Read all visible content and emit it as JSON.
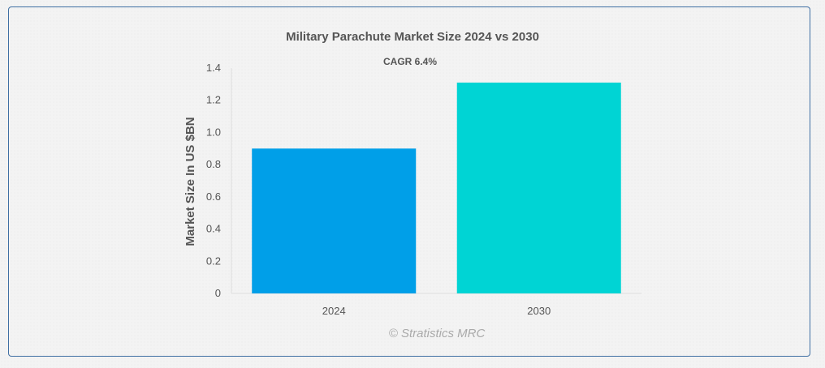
{
  "chart_data": {
    "type": "bar",
    "title": "Military Parachute Market Size 2024 vs 2030",
    "subtitle": "CAGR 6.4%",
    "categories": [
      "2024",
      "2030"
    ],
    "values": [
      0.9,
      1.31
    ],
    "colors": [
      "#009fe8",
      "#00d4d4"
    ],
    "xlabel": "",
    "ylabel": "Market Size In US $BN",
    "ylim": [
      0,
      1.4
    ],
    "yticks": [
      "0",
      "0.2",
      "0.4",
      "0.6",
      "0.8",
      "1.0",
      "1.2",
      "1.4"
    ],
    "grid": false,
    "legend": "none"
  },
  "credit": "© Stratistics MRC"
}
